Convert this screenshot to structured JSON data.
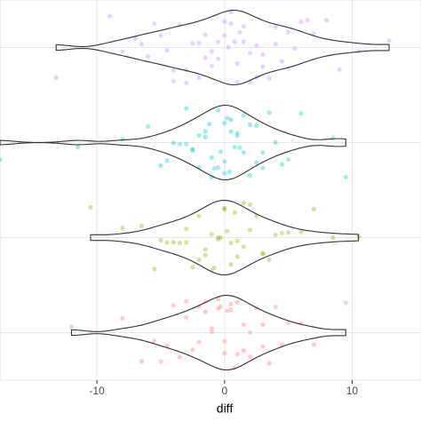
{
  "chart_data": {
    "type": "violin",
    "x_label": "diff",
    "xlim": [
      -17.6,
      15.4
    ],
    "xticks": [
      -10,
      0,
      10
    ],
    "grid": true,
    "series": [
      {
        "color": "#C77CFF",
        "values": [
          -13.2,
          -9,
          -8,
          -7,
          -6.5,
          -6,
          -5.5,
          -5,
          -4.5,
          -4,
          -4,
          -3.5,
          -3,
          -3,
          -2.5,
          -2,
          -2,
          -1.5,
          -1.5,
          -1,
          -1,
          -0.5,
          -0.5,
          0,
          0,
          0.3,
          0.5,
          0.5,
          0.8,
          1,
          1,
          1.2,
          1.5,
          1.5,
          2,
          2,
          2.5,
          2.5,
          3,
          3,
          3.5,
          4,
          4,
          4.5,
          5,
          5,
          5.5,
          6,
          6.5,
          7,
          8,
          9,
          10.5,
          12.9
        ]
      },
      {
        "color": "#00BFC4",
        "values": [
          -17.6,
          -11.5,
          -8,
          -6,
          -5,
          -4.5,
          -4,
          -3.5,
          -3,
          -3,
          -2.5,
          -2.5,
          -2,
          -2,
          -1.5,
          -1.5,
          -1.2,
          -1,
          -1,
          -0.8,
          -0.5,
          -0.5,
          -0.3,
          0,
          0,
          0,
          0.2,
          0.4,
          0.5,
          0.5,
          0.8,
          1,
          1,
          1.2,
          1.5,
          1.5,
          2,
          2,
          2.5,
          2.5,
          3,
          3,
          3.5,
          4,
          4.5,
          5,
          6,
          8.5,
          9.5
        ]
      },
      {
        "color": "#7CAE00",
        "values": [
          -10.5,
          -8,
          -6.5,
          -5.5,
          -5,
          -4.5,
          -4,
          -3.5,
          -3,
          -3,
          -2.5,
          -2,
          -2,
          -1.5,
          -1.5,
          -1,
          -1,
          -0.8,
          -0.5,
          -0.5,
          -0.3,
          0,
          0,
          0.2,
          0.5,
          0.5,
          0.8,
          1,
          1,
          1.5,
          1.5,
          2,
          2,
          2.5,
          3,
          3,
          3.5,
          4,
          4.5,
          5,
          6,
          7,
          8.5,
          10.5
        ]
      },
      {
        "color": "#F8766D",
        "values": [
          -12,
          -8,
          -6.5,
          -5.5,
          -5,
          -4.5,
          -4,
          -3.5,
          -3,
          -3,
          -2.5,
          -2,
          -2,
          -1.5,
          -1.5,
          -1,
          -1,
          -0.5,
          -0.5,
          -0.3,
          0,
          0,
          0.2,
          0.5,
          0.5,
          0.8,
          1,
          1,
          1.5,
          1.5,
          2,
          2,
          2.5,
          3,
          3,
          3.5,
          4,
          4.5,
          5,
          6,
          7,
          9.5
        ]
      }
    ]
  }
}
